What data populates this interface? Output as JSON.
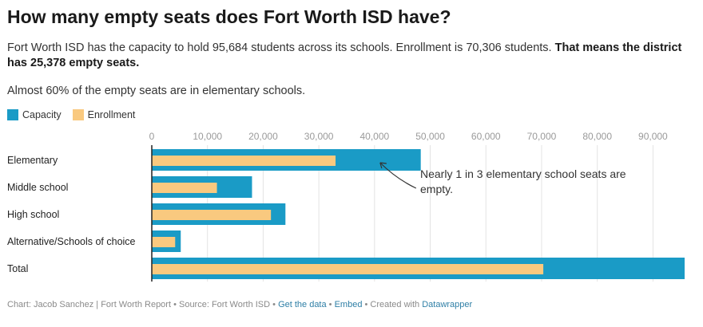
{
  "header": {
    "title": "How many empty seats does Fort Worth ISD have?",
    "subtitle_plain": "Fort Worth ISD has the capacity to hold 95,684 students across its schools. Enrollment is 70,306 students. ",
    "subtitle_bold": "That means the district has 25,378 empty seats.",
    "note": "Almost 60% of the empty seats are in elementary schools."
  },
  "legend": {
    "capacity_label": "Capacity",
    "enrollment_label": "Enrollment"
  },
  "colors": {
    "capacity": "#1a9bc6",
    "enrollment": "#f9c97f",
    "grid": "#e3e3e3",
    "axis": "#222222"
  },
  "chart_data": {
    "type": "bar",
    "orientation": "horizontal",
    "title": "How many empty seats does Fort Worth ISD have?",
    "categories": [
      "Elementary",
      "Middle school",
      "High school",
      "Alternative/Schools of choice",
      "Total"
    ],
    "series": [
      {
        "name": "Capacity",
        "values": [
          48300,
          18000,
          24000,
          5200,
          95684
        ]
      },
      {
        "name": "Enrollment",
        "values": [
          33000,
          11700,
          21400,
          4200,
          70306
        ]
      }
    ],
    "xlim": [
      0,
      95684
    ],
    "ticks": [
      0,
      10000,
      20000,
      30000,
      40000,
      50000,
      60000,
      70000,
      80000,
      90000
    ],
    "tick_labels": [
      "0",
      "10,000",
      "20,000",
      "30,000",
      "40,000",
      "50,000",
      "60,000",
      "70,000",
      "80,000",
      "90,000"
    ],
    "grid": true,
    "legend_position": "top-left",
    "annotation": {
      "text_line1": "Nearly 1 in 3 elementary school seats are",
      "text_line2": "empty.",
      "target_category": "Elementary",
      "target_value": 40000
    }
  },
  "footer": {
    "credit": "Chart: Jacob Sanchez | Fort Worth Report • Source: Fort Worth ISD • ",
    "get_data": "Get the data",
    "sep1": " • ",
    "embed": "Embed",
    "created": " • Created with ",
    "datawrapper": "Datawrapper"
  }
}
